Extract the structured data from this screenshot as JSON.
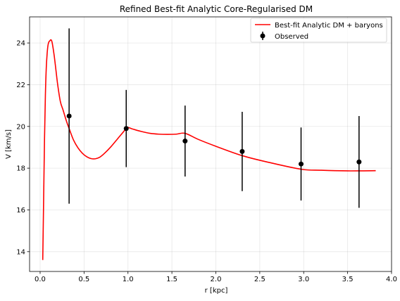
{
  "chart_data": {
    "type": "line",
    "title": "Refined Best-fit Analytic Core-Regularised DM",
    "xlabel": "r [kpc]",
    "ylabel": "V [km/s]",
    "xlim": [
      -0.12,
      4.0
    ],
    "ylim": [
      13.05,
      25.25
    ],
    "xticks": [
      "0.0",
      "0.5",
      "1.0",
      "1.5",
      "2.0",
      "2.5",
      "3.0",
      "3.5",
      "4.0"
    ],
    "yticks": [
      "14",
      "16",
      "18",
      "20",
      "22",
      "24"
    ],
    "grid": true,
    "legend_position": "top-right",
    "colors": {
      "model": "#ff0000",
      "observed": "#000000"
    },
    "series": [
      {
        "name": "Best-fit Analytic DM + baryons",
        "kind": "line",
        "x": [
          0.03,
          0.04,
          0.05,
          0.06,
          0.07,
          0.08,
          0.09,
          0.1,
          0.11,
          0.12,
          0.13,
          0.14,
          0.16,
          0.18,
          0.2,
          0.23,
          0.26,
          0.3,
          0.33,
          0.38,
          0.43,
          0.48,
          0.53,
          0.58,
          0.63,
          0.68,
          0.73,
          0.8,
          0.88,
          0.95,
          0.99,
          1.05,
          1.15,
          1.25,
          1.35,
          1.45,
          1.55,
          1.65,
          1.8,
          2.0,
          2.3,
          2.6,
          2.97,
          3.2,
          3.5,
          3.82
        ],
        "y": [
          13.6,
          16.5,
          19.4,
          21.5,
          22.8,
          23.5,
          23.9,
          24.05,
          24.1,
          24.15,
          24.12,
          23.95,
          23.4,
          22.7,
          22.0,
          21.2,
          20.8,
          20.25,
          19.9,
          19.35,
          18.98,
          18.72,
          18.55,
          18.46,
          18.45,
          18.53,
          18.7,
          19.0,
          19.4,
          19.75,
          19.95,
          19.88,
          19.76,
          19.67,
          19.63,
          19.62,
          19.63,
          19.67,
          19.38,
          19.05,
          18.6,
          18.28,
          17.95,
          17.9,
          17.87,
          17.88
        ]
      },
      {
        "name": "Observed",
        "kind": "errorbar",
        "x": [
          0.33,
          0.98,
          1.65,
          2.3,
          2.97,
          3.63
        ],
        "y": [
          20.5,
          19.9,
          19.3,
          18.8,
          18.2,
          18.3
        ],
        "yerr": [
          4.2,
          1.85,
          1.7,
          1.9,
          1.75,
          2.2
        ]
      }
    ]
  }
}
